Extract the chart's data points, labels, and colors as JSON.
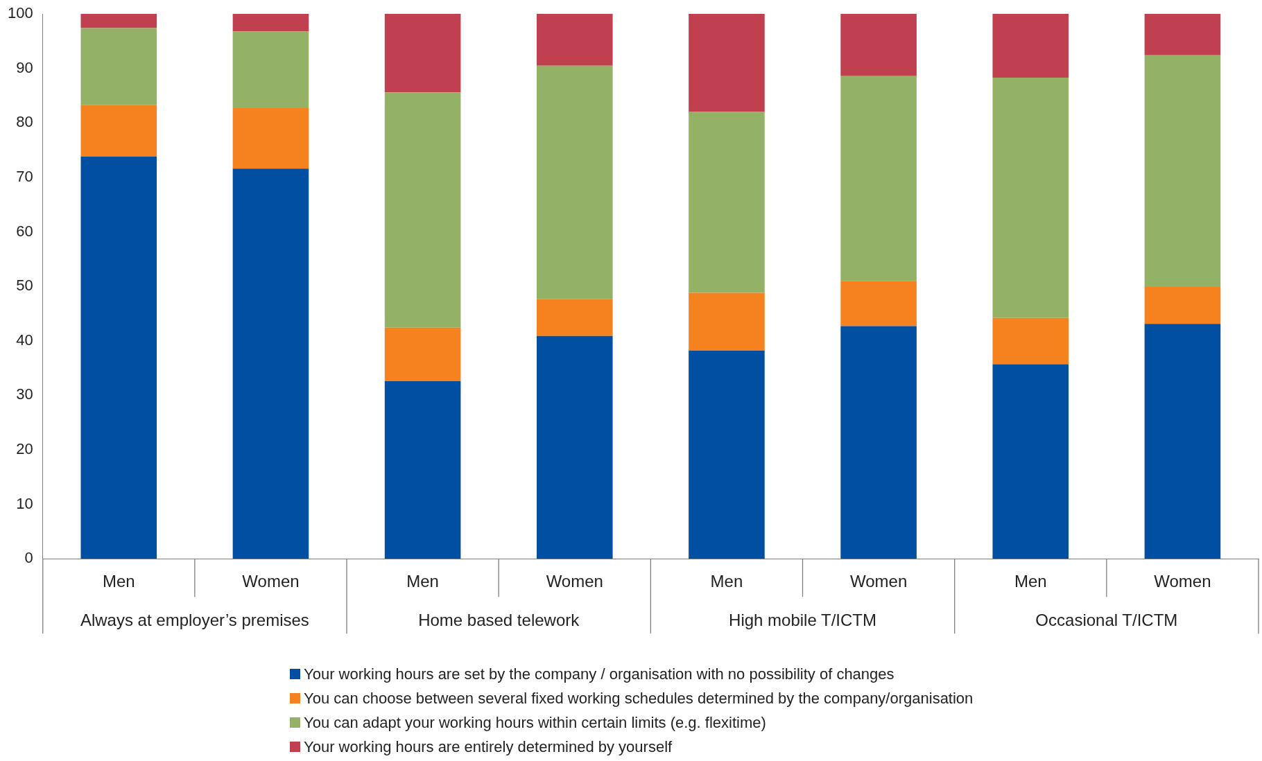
{
  "chart_data": {
    "type": "bar",
    "stacked": true,
    "categories": [
      "Men",
      "Women",
      "Men",
      "Women",
      "Men",
      "Women",
      "Men",
      "Women"
    ],
    "annotations": [
      "Always at employer’s premises",
      "Home based telework",
      "High mobile T/ICTM",
      "Occasional T/ICTM"
    ],
    "series": [
      {
        "name": "Your working hours are set by the company / organisation with no possibility of changes",
        "color": "#004fa3",
        "values": [
          73.8,
          71.6,
          32.6,
          40.9,
          38.2,
          42.7,
          35.7,
          43.1
        ]
      },
      {
        "name": "You can choose between several fixed working schedules determined by the company/organisation",
        "color": "#f5821f",
        "values": [
          9.5,
          11.1,
          9.8,
          6.8,
          10.6,
          8.3,
          8.5,
          6.8
        ]
      },
      {
        "name": "You can adapt your working hours within certain limits (e.g. flexitime)",
        "color": "#94b265",
        "values": [
          14.1,
          14.1,
          43.2,
          42.8,
          33.2,
          37.6,
          44.1,
          42.5
        ]
      },
      {
        "name": "Your working hours are entirely determined by yourself",
        "color": "#c0404f",
        "values": [
          2.6,
          3.2,
          14.4,
          9.5,
          18.0,
          11.4,
          11.7,
          7.6
        ]
      }
    ],
    "ylim": [
      0,
      100
    ],
    "yticks": [
      0,
      10,
      20,
      30,
      40,
      50,
      60,
      70,
      80,
      90,
      100
    ],
    "grid": false,
    "legend": "bottom"
  }
}
